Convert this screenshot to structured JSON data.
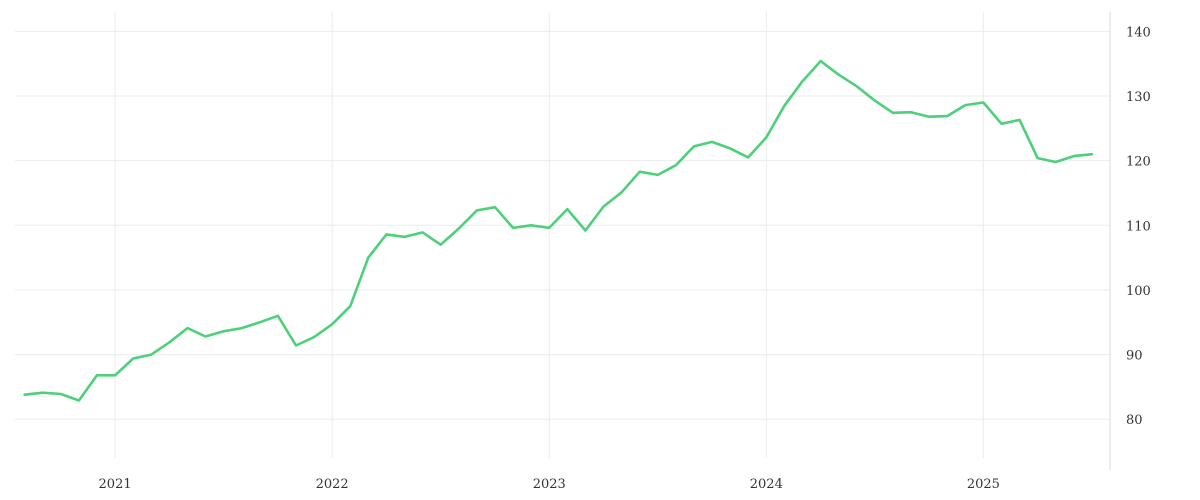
{
  "chart_data": {
    "type": "line",
    "title": "",
    "xlabel": "",
    "ylabel": "",
    "x_ticks": [
      {
        "value": "2021-01",
        "label": "2021"
      },
      {
        "value": "2022-01",
        "label": "2022"
      },
      {
        "value": "2023-01",
        "label": "2023"
      },
      {
        "value": "2024-01",
        "label": "2024"
      },
      {
        "value": "2025-01",
        "label": "2025"
      }
    ],
    "y_ticks": [
      80,
      90,
      100,
      110,
      120,
      130,
      140
    ],
    "xlim": [
      "2020-07-15",
      "2025-08-01"
    ],
    "ylim": [
      74,
      143
    ],
    "y_axis_position": "right",
    "grid": true,
    "series": [
      {
        "color": "#4cd17a",
        "points": [
          [
            "2020-08",
            83.8
          ],
          [
            "2020-09",
            84.1
          ],
          [
            "2020-10",
            83.9
          ],
          [
            "2020-11",
            82.9
          ],
          [
            "2020-12",
            86.8
          ],
          [
            "2021-01",
            86.8
          ],
          [
            "2021-02",
            89.4
          ],
          [
            "2021-03",
            90.0
          ],
          [
            "2021-04",
            91.9
          ],
          [
            "2021-05",
            94.1
          ],
          [
            "2021-06",
            92.8
          ],
          [
            "2021-07",
            93.6
          ],
          [
            "2021-08",
            94.1
          ],
          [
            "2021-09",
            95.0
          ],
          [
            "2021-10",
            96.0
          ],
          [
            "2021-11",
            91.4
          ],
          [
            "2021-12",
            92.7
          ],
          [
            "2022-01",
            94.7
          ],
          [
            "2022-02",
            97.5
          ],
          [
            "2022-03",
            105.0
          ],
          [
            "2022-04",
            108.6
          ],
          [
            "2022-05",
            108.2
          ],
          [
            "2022-06",
            108.9
          ],
          [
            "2022-07",
            107.0
          ],
          [
            "2022-08",
            109.5
          ],
          [
            "2022-09",
            112.3
          ],
          [
            "2022-10",
            112.8
          ],
          [
            "2022-11",
            109.6
          ],
          [
            "2022-12",
            110.0
          ],
          [
            "2023-01",
            109.6
          ],
          [
            "2023-02",
            112.5
          ],
          [
            "2023-03",
            109.2
          ],
          [
            "2023-04",
            112.9
          ],
          [
            "2023-05",
            115.1
          ],
          [
            "2023-06",
            118.3
          ],
          [
            "2023-07",
            117.8
          ],
          [
            "2023-08",
            119.3
          ],
          [
            "2023-09",
            122.2
          ],
          [
            "2023-10",
            122.9
          ],
          [
            "2023-11",
            121.9
          ],
          [
            "2023-12",
            120.5
          ],
          [
            "2024-01",
            123.6
          ],
          [
            "2024-02",
            128.5
          ],
          [
            "2024-03",
            132.3
          ],
          [
            "2024-04",
            135.4
          ],
          [
            "2024-05",
            133.3
          ],
          [
            "2024-06",
            131.5
          ],
          [
            "2024-07",
            129.3
          ],
          [
            "2024-08",
            127.4
          ],
          [
            "2024-09",
            127.5
          ],
          [
            "2024-10",
            126.8
          ],
          [
            "2024-11",
            126.9
          ],
          [
            "2024-12",
            128.6
          ],
          [
            "2025-01",
            129.0
          ],
          [
            "2025-02",
            125.7
          ],
          [
            "2025-03",
            126.3
          ],
          [
            "2025-04",
            120.4
          ],
          [
            "2025-05",
            119.8
          ],
          [
            "2025-06",
            120.7
          ],
          [
            "2025-07",
            121.0
          ]
        ]
      }
    ]
  }
}
